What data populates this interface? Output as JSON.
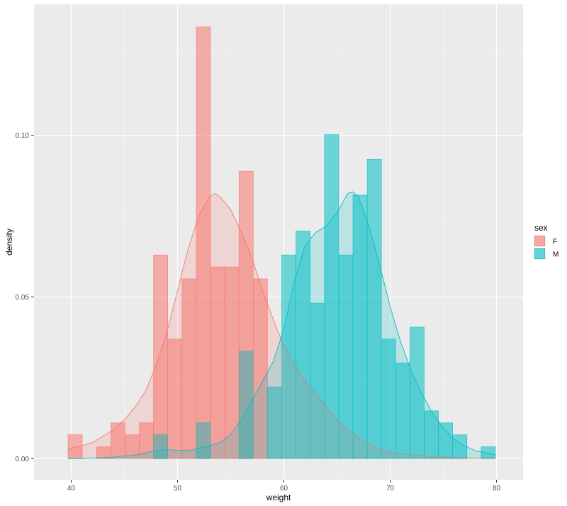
{
  "chart_data": {
    "type": "histogram",
    "xlabel": "weight",
    "ylabel": "density",
    "xlim": [
      36.5,
      82.5
    ],
    "ylim": [
      -0.0065,
      0.1405
    ],
    "x_ticks": [
      40,
      50,
      60,
      70,
      80
    ],
    "x_tick_labels": [
      "40",
      "50",
      "60",
      "70",
      "80"
    ],
    "y_ticks": [
      0.0,
      0.05,
      0.1
    ],
    "y_tick_labels": [
      "0.00",
      "0.05",
      "0.10"
    ],
    "bins": {
      "start": 39.7,
      "width": 1.34,
      "count": 30
    },
    "legend": {
      "title": "sex",
      "position": "right"
    },
    "background": "#EBEBEB",
    "grid": true,
    "series": [
      {
        "name": "F",
        "fill": "#F8766D",
        "line": "#F8766D",
        "histogram": [
          0.0074,
          0,
          0.0037,
          0.0111,
          0.0074,
          0.0111,
          0.063,
          0.037,
          0.0556,
          0.1335,
          0.0593,
          0.0593,
          0.0889,
          0.0556,
          0,
          0,
          0,
          0,
          0,
          0,
          0,
          0,
          0,
          0,
          0,
          0,
          0,
          0,
          0,
          0
        ],
        "density": {
          "x": [
            39.7,
            41,
            42,
            43,
            44,
            45,
            46,
            47,
            48,
            49,
            50,
            51,
            52,
            53,
            53.5,
            54,
            55,
            56,
            57,
            58,
            59,
            60,
            61,
            62,
            63,
            64,
            65,
            66,
            67,
            68,
            69,
            70,
            72,
            74,
            76,
            78,
            79.9
          ],
          "y": [
            0.003,
            0.004,
            0.005,
            0.007,
            0.009,
            0.012,
            0.016,
            0.021,
            0.029,
            0.039,
            0.052,
            0.065,
            0.075,
            0.081,
            0.082,
            0.081,
            0.077,
            0.07,
            0.062,
            0.052,
            0.043,
            0.035,
            0.029,
            0.024,
            0.02,
            0.016,
            0.012,
            0.009,
            0.0065,
            0.0045,
            0.003,
            0.002,
            0.0012,
            0.0007,
            0.0004,
            0.0002,
            0.0001
          ]
        }
      },
      {
        "name": "M",
        "fill": "#00BFC4",
        "line": "#00BFC4",
        "histogram": [
          0,
          0,
          0,
          0,
          0,
          0,
          0.0074,
          0,
          0,
          0.0111,
          0,
          0,
          0.0333,
          0,
          0.0222,
          0.063,
          0.0704,
          0.0481,
          0.1002,
          0.063,
          0.0815,
          0.0926,
          0.037,
          0.0296,
          0.0407,
          0.0148,
          0.0111,
          0.0074,
          0,
          0.0037
        ],
        "density": {
          "x": [
            39.7,
            42,
            44,
            46,
            47,
            48,
            49,
            50,
            51,
            52,
            53,
            54,
            55,
            56,
            57,
            58,
            59,
            60,
            61,
            62,
            63,
            64,
            65,
            66,
            66.5,
            67,
            68,
            69,
            70,
            71,
            72,
            73,
            74,
            75,
            76,
            77,
            78,
            79.9
          ],
          "y": [
            0,
            0.0002,
            0.0005,
            0.0012,
            0.0018,
            0.0025,
            0.0028,
            0.0026,
            0.0025,
            0.0032,
            0.004,
            0.005,
            0.0075,
            0.012,
            0.018,
            0.024,
            0.03,
            0.04,
            0.055,
            0.066,
            0.07,
            0.072,
            0.076,
            0.082,
            0.0825,
            0.081,
            0.072,
            0.06,
            0.047,
            0.036,
            0.027,
            0.02,
            0.014,
            0.0095,
            0.006,
            0.004,
            0.0025,
            0.0012
          ]
        }
      }
    ]
  }
}
